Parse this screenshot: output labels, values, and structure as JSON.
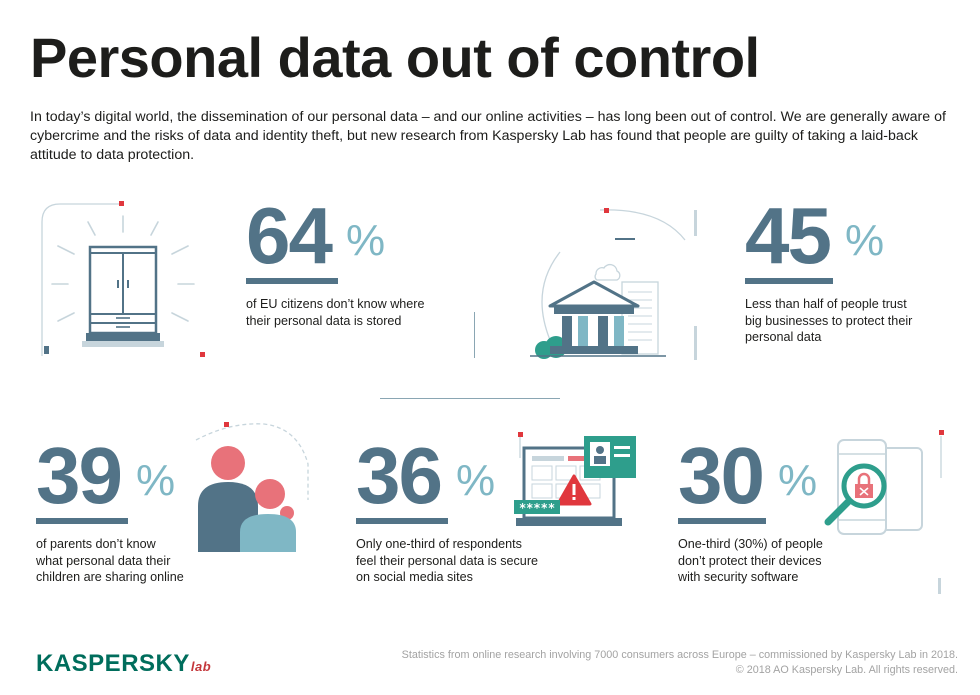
{
  "header": {
    "title": "Personal data out of control",
    "intro": "In today’s digital world, the dissemination of our personal data – and our online activities – has long been out of control. We are generally aware of cybercrime and the risks of data and identity theft, but new research from Kaspersky Lab has found that people are guilty of taking a laid-back attitude to data protection."
  },
  "stats": [
    {
      "value": "64",
      "unit": "%",
      "lines": [
        "of EU citizens don’t know where",
        "their personal data is stored"
      ]
    },
    {
      "value": "45",
      "unit": "%",
      "lines": [
        "Less than half of people trust",
        "big businesses to protect their",
        "personal data"
      ]
    },
    {
      "value": "39",
      "unit": "%",
      "lines": [
        "of parents don’t know",
        "what personal data their",
        "children are sharing online"
      ]
    },
    {
      "value": "36",
      "unit": "%",
      "lines": [
        "Only one-third of respondents",
        "feel their personal data is secure",
        "on social media sites"
      ]
    },
    {
      "value": "30",
      "unit": "%",
      "lines": [
        "One-third (30%) of people",
        "don’t protect their devices",
        "with security software"
      ]
    }
  ],
  "illustrations": {
    "password_mask": "*****"
  },
  "footer": {
    "logo": "KASPERSKY",
    "logo_sub": "lab",
    "line1": "Statistics from online research involving 7000 consumers across Europe – commissioned by Kaspersky Lab in 2018.",
    "line2": "© 2018 AO Kaspersky Lab. All rights reserved."
  },
  "colors": {
    "primary": "#527387",
    "accent_light": "#7fb7c5",
    "red": "#e0373d",
    "pink": "#e8727a",
    "green": "#2e9e8c",
    "logo_green": "#006d5c"
  }
}
